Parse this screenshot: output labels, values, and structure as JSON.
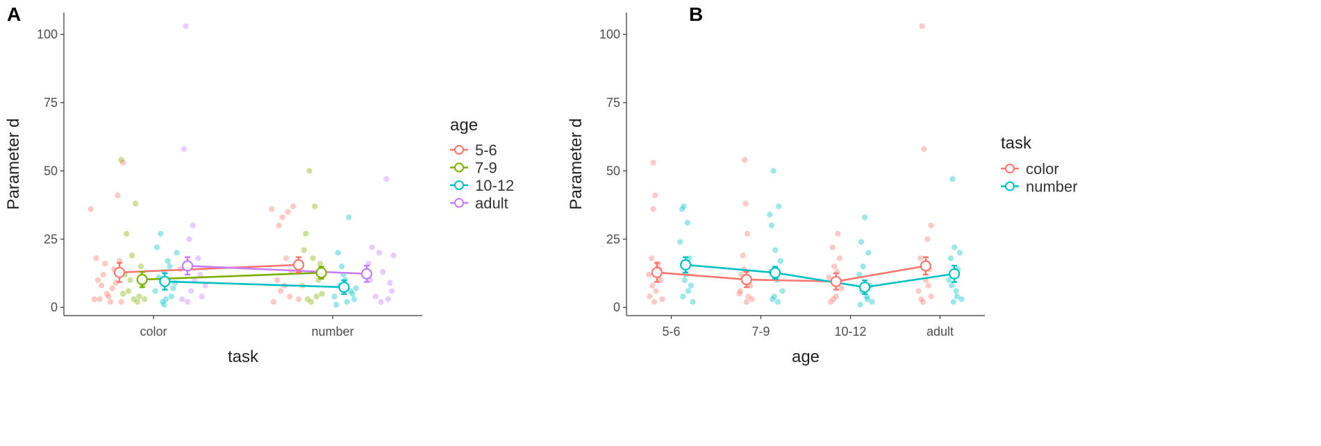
{
  "chart_data": [
    {
      "panel": "A",
      "type": "scatter",
      "xlabel": "task",
      "ylabel": "Parameter d",
      "categories": [
        "color",
        "number"
      ],
      "ylim": [
        -3,
        108
      ],
      "yticks": [
        0,
        25,
        50,
        75,
        100
      ],
      "legend_title": "age",
      "legend_position": "right",
      "series": [
        {
          "name": "5-6",
          "color": "#F8766D",
          "means": [
            12.8,
            15.6
          ],
          "se": [
            3.5,
            2.8
          ],
          "points": [
            [
              [
                -0.35,
                36
              ],
              [
                -0.32,
                18
              ],
              [
                -0.28,
                12
              ],
              [
                -0.25,
                4
              ],
              [
                -0.3,
                3
              ],
              [
                -0.27,
                16
              ],
              [
                -0.23,
                7
              ],
              [
                -0.2,
                41
              ],
              [
                -0.17,
                53
              ],
              [
                -0.22,
                14
              ],
              [
                -0.24,
                2
              ],
              [
                -0.21,
                9
              ],
              [
                -0.19,
                17
              ],
              [
                -0.26,
                5
              ],
              [
                -0.29,
                8
              ],
              [
                -0.33,
                3
              ],
              [
                -0.18,
                2
              ],
              [
                -0.31,
                10
              ]
            ],
            [
              [
                -0.34,
                36
              ],
              [
                -0.3,
                30
              ],
              [
                -0.28,
                33
              ],
              [
                -0.22,
                37
              ],
              [
                -0.25,
                35
              ],
              [
                -0.31,
                10
              ],
              [
                -0.27,
                8
              ],
              [
                -0.33,
                2
              ],
              [
                -0.24,
                4
              ],
              [
                -0.2,
                16
              ],
              [
                -0.19,
                3
              ],
              [
                -0.29,
                6
              ],
              [
                -0.23,
                13
              ],
              [
                -0.26,
                18
              ]
            ]
          ]
        },
        {
          "name": "7-9",
          "color": "#7CAE00",
          "means": [
            10.2,
            12.7
          ],
          "se": [
            2.8,
            2.2
          ],
          "points": [
            [
              [
                -0.18,
                54
              ],
              [
                -0.15,
                27
              ],
              [
                -0.12,
                19
              ],
              [
                -0.1,
                38
              ],
              [
                -0.14,
                6
              ],
              [
                -0.08,
                4
              ],
              [
                -0.11,
                3
              ],
              [
                -0.16,
                12
              ],
              [
                -0.06,
                8
              ],
              [
                -0.09,
                2
              ],
              [
                -0.13,
                10
              ],
              [
                -0.05,
                3
              ],
              [
                -0.17,
                5
              ],
              [
                -0.07,
                15
              ]
            ],
            [
              [
                -0.13,
                50
              ],
              [
                -0.1,
                37
              ],
              [
                -0.15,
                27
              ],
              [
                -0.16,
                21
              ],
              [
                -0.11,
                18
              ],
              [
                -0.08,
                10
              ],
              [
                -0.14,
                3
              ],
              [
                -0.12,
                2
              ],
              [
                -0.06,
                5
              ],
              [
                -0.09,
                4
              ],
              [
                -0.07,
                16
              ],
              [
                -0.17,
                8
              ],
              [
                -0.05,
                13
              ]
            ]
          ]
        },
        {
          "name": "10-12",
          "color": "#00BFC4",
          "means": [
            9.5,
            7.4
          ],
          "se": [
            3.0,
            2.5
          ],
          "points": [
            [
              [
                0.04,
                27
              ],
              [
                0.02,
                22
              ],
              [
                0.06,
                13
              ],
              [
                0.08,
                17
              ],
              [
                0.01,
                6
              ],
              [
                0.1,
                4
              ],
              [
                0.05,
                2
              ],
              [
                0.12,
                9
              ],
              [
                0.03,
                11
              ],
              [
                0.07,
                3
              ],
              [
                0.09,
                15
              ],
              [
                0.11,
                7
              ],
              [
                0.13,
                20
              ],
              [
                0.06,
                1
              ]
            ],
            [
              [
                0.09,
                33
              ],
              [
                0.03,
                20
              ],
              [
                0.05,
                15
              ],
              [
                0.07,
                10
              ],
              [
                0.1,
                6
              ],
              [
                0.01,
                4
              ],
              [
                0.12,
                3
              ],
              [
                0.08,
                2
              ],
              [
                0.04,
                8
              ],
              [
                0.11,
                5
              ],
              [
                0.06,
                12
              ],
              [
                0.02,
                1
              ],
              [
                0.13,
                7
              ]
            ]
          ]
        },
        {
          "name": "adult",
          "color": "#C77CFF",
          "means": [
            15.2,
            12.3
          ],
          "se": [
            3.2,
            3.0
          ],
          "points": [
            [
              [
                0.18,
                103
              ],
              [
                0.17,
                58
              ],
              [
                0.22,
                30
              ],
              [
                0.2,
                25
              ],
              [
                0.25,
                18
              ],
              [
                0.15,
                14
              ],
              [
                0.23,
                10
              ],
              [
                0.27,
                4
              ],
              [
                0.19,
                2
              ],
              [
                0.29,
                8
              ],
              [
                0.21,
                6
              ],
              [
                0.26,
                12
              ],
              [
                0.16,
                3
              ]
            ],
            [
              [
                0.3,
                47
              ],
              [
                0.22,
                22
              ],
              [
                0.26,
                20
              ],
              [
                0.34,
                19
              ],
              [
                0.2,
                16
              ],
              [
                0.28,
                13
              ],
              [
                0.32,
                9
              ],
              [
                0.24,
                4
              ],
              [
                0.27,
                2
              ],
              [
                0.33,
                6
              ],
              [
                0.21,
                10
              ],
              [
                0.31,
                3
              ]
            ]
          ]
        }
      ]
    },
    {
      "panel": "B",
      "type": "scatter",
      "xlabel": "age",
      "ylabel": "Parameter d",
      "categories": [
        "5-6",
        "7-9",
        "10-12",
        "adult"
      ],
      "ylim": [
        -3,
        108
      ],
      "yticks": [
        0,
        25,
        50,
        75,
        100
      ],
      "legend_title": "task",
      "legend_position": "right",
      "series": [
        {
          "name": "color",
          "color": "#F8766D",
          "means": [
            12.8,
            10.2,
            9.5,
            15.2
          ],
          "se": [
            3.5,
            2.8,
            3.0,
            3.2
          ],
          "points": [
            [
              [
                -0.2,
                53
              ],
              [
                -0.18,
                41
              ],
              [
                -0.2,
                36
              ],
              [
                -0.22,
                18
              ],
              [
                -0.15,
                16
              ],
              [
                -0.25,
                12
              ],
              [
                -0.12,
                10
              ],
              [
                -0.17,
                6
              ],
              [
                -0.24,
                4
              ],
              [
                -0.1,
                3
              ],
              [
                -0.19,
                2
              ],
              [
                -0.13,
                14
              ],
              [
                -0.21,
                8
              ]
            ],
            [
              [
                -0.18,
                54
              ],
              [
                -0.17,
                38
              ],
              [
                -0.15,
                27
              ],
              [
                -0.2,
                19
              ],
              [
                -0.22,
                12
              ],
              [
                -0.12,
                8
              ],
              [
                -0.24,
                5
              ],
              [
                -0.1,
                3
              ],
              [
                -0.16,
                2
              ],
              [
                -0.14,
                4
              ],
              [
                -0.19,
                14
              ],
              [
                -0.23,
                6
              ]
            ],
            [
              [
                -0.14,
                27
              ],
              [
                -0.2,
                22
              ],
              [
                -0.12,
                18
              ],
              [
                -0.18,
                15
              ],
              [
                -0.24,
                11
              ],
              [
                -0.1,
                7
              ],
              [
                -0.16,
                4
              ],
              [
                -0.22,
                2
              ],
              [
                -0.13,
                9
              ],
              [
                -0.19,
                3
              ],
              [
                -0.15,
                13
              ]
            ],
            [
              [
                -0.2,
                103
              ],
              [
                -0.18,
                58
              ],
              [
                -0.1,
                30
              ],
              [
                -0.14,
                25
              ],
              [
                -0.22,
                18
              ],
              [
                -0.12,
                14
              ],
              [
                -0.16,
                10
              ],
              [
                -0.24,
                6
              ],
              [
                -0.1,
                4
              ],
              [
                -0.19,
                2
              ],
              [
                -0.13,
                8
              ],
              [
                -0.21,
                3
              ]
            ]
          ]
        },
        {
          "name": "number",
          "color": "#00BFC4",
          "means": [
            15.6,
            12.7,
            7.4,
            12.3
          ],
          "se": [
            2.8,
            2.2,
            2.5,
            3.0
          ],
          "points": [
            [
              [
                0.14,
                37
              ],
              [
                0.12,
                36
              ],
              [
                0.18,
                31
              ],
              [
                0.1,
                24
              ],
              [
                0.2,
                18
              ],
              [
                0.16,
                12
              ],
              [
                0.22,
                8
              ],
              [
                0.13,
                4
              ],
              [
                0.24,
                2
              ],
              [
                0.19,
                6
              ],
              [
                0.15,
                10
              ]
            ],
            [
              [
                0.14,
                50
              ],
              [
                0.2,
                37
              ],
              [
                0.1,
                34
              ],
              [
                0.12,
                30
              ],
              [
                0.16,
                21
              ],
              [
                0.22,
                17
              ],
              [
                0.18,
                10
              ],
              [
                0.24,
                6
              ],
              [
                0.13,
                3
              ],
              [
                0.19,
                2
              ],
              [
                0.15,
                4
              ],
              [
                0.11,
                13
              ]
            ],
            [
              [
                0.16,
                33
              ],
              [
                0.12,
                24
              ],
              [
                0.2,
                20
              ],
              [
                0.14,
                15
              ],
              [
                0.1,
                12
              ],
              [
                0.22,
                8
              ],
              [
                0.18,
                4
              ],
              [
                0.24,
                2
              ],
              [
                0.13,
                6
              ],
              [
                0.19,
                3
              ],
              [
                0.11,
                1
              ]
            ],
            [
              [
                0.14,
                47
              ],
              [
                0.16,
                22
              ],
              [
                0.22,
                20
              ],
              [
                0.12,
                18
              ],
              [
                0.2,
                14
              ],
              [
                0.1,
                10
              ],
              [
                0.18,
                6
              ],
              [
                0.24,
                3
              ],
              [
                0.15,
                2
              ],
              [
                0.13,
                8
              ],
              [
                0.19,
                4
              ]
            ]
          ]
        }
      ]
    }
  ]
}
